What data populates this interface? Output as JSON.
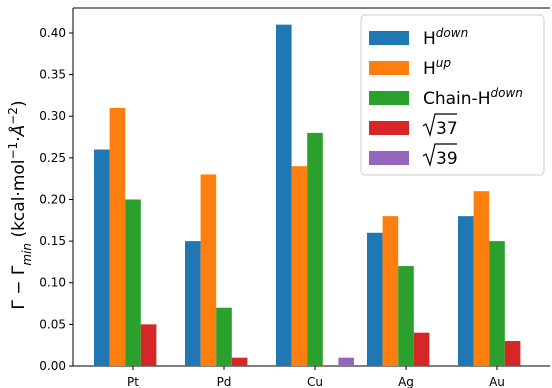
{
  "chart_data": {
    "type": "bar",
    "categories": [
      "Pt",
      "Pd",
      "Cu",
      "Ag",
      "Au"
    ],
    "series": [
      {
        "name": "H^down",
        "base": "H",
        "sup": "down",
        "color": "#1f77b4",
        "values": [
          0.26,
          0.15,
          0.41,
          0.16,
          0.18
        ]
      },
      {
        "name": "H^up",
        "base": "H",
        "sup": "up",
        "color": "#ff7f0e",
        "values": [
          0.31,
          0.23,
          0.24,
          0.18,
          0.21
        ]
      },
      {
        "name": "Chain-H^down",
        "base": "Chain-H",
        "sup": "down",
        "color": "#2ca02c",
        "values": [
          0.2,
          0.07,
          0.28,
          0.12,
          0.15
        ]
      },
      {
        "name": "√37",
        "base": "37",
        "sqrt": true,
        "color": "#d62728",
        "values": [
          0.05,
          0.01,
          null,
          0.04,
          0.03
        ]
      },
      {
        "name": "√39",
        "base": "39",
        "sqrt": true,
        "color": "#9467bd",
        "values": [
          null,
          null,
          0.01,
          null,
          null
        ]
      }
    ],
    "ylabel": "Γ − Γmin (kcal·mol⁻¹·Å⁻²)",
    "ylabel_parts": {
      "lead": "Γ − Γ",
      "sub": "min",
      "tail": " (kcal·mol",
      "sup1": "−1",
      "mid": "·",
      "ang": "Å",
      "sup2": "−2",
      "close": ")"
    },
    "ylim": [
      0,
      0.43
    ],
    "yticks": [
      0.0,
      0.05,
      0.1,
      0.15,
      0.2,
      0.25,
      0.3,
      0.35,
      0.4
    ],
    "ytick_labels": [
      "0.00",
      "0.05",
      "0.10",
      "0.15",
      "0.20",
      "0.25",
      "0.30",
      "0.35",
      "0.40"
    ],
    "grid": false,
    "legend_position": "top-right"
  }
}
